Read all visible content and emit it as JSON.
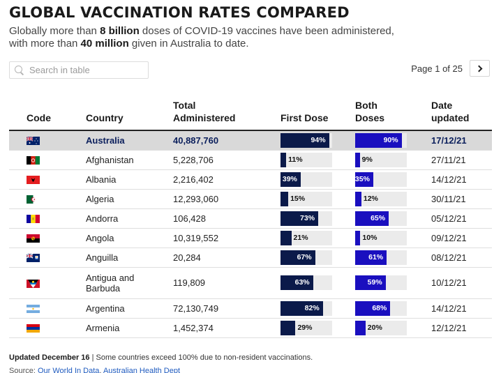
{
  "header": {
    "title": "GLOBAL VACCINATION RATES COMPARED",
    "subtitle_pre": "Globally more than ",
    "subtitle_bold1": "8 billion",
    "subtitle_mid": " doses of COVID-19 vaccines have been administered,",
    "subtitle_pre2": "with more than ",
    "subtitle_bold2": "40 million",
    "subtitle_post": " given in Australia to date."
  },
  "search": {
    "placeholder": "Search in table",
    "value": ""
  },
  "pager": {
    "label": "Page 1 of 25",
    "current": 1,
    "total": 25
  },
  "table": {
    "columns": {
      "code": "Code",
      "country": "Country",
      "total_1": "Total",
      "total_2": "Administered",
      "first": "First Dose",
      "both_1": "Both",
      "both_2": "Doses",
      "date_1": "Date",
      "date_2": "updated"
    },
    "rows": [
      {
        "flag": "australia-flag",
        "country": "Australia",
        "total": "40,887,760",
        "first": 94,
        "first_label": "94%",
        "both": 90,
        "both_label": "90%",
        "date": "17/12/21"
      },
      {
        "flag": "afghanistan-flag",
        "country": "Afghanistan",
        "total": "5,228,706",
        "first": 11,
        "first_label": "11%",
        "both": 9,
        "both_label": "9%",
        "date": "27/11/21"
      },
      {
        "flag": "albania-flag",
        "country": "Albania",
        "total": "2,216,402",
        "first": 39,
        "first_label": "39%",
        "both": 35,
        "both_label": "35%",
        "date": "14/12/21"
      },
      {
        "flag": "algeria-flag",
        "country": "Algeria",
        "total": "12,293,060",
        "first": 15,
        "first_label": "15%",
        "both": 12,
        "both_label": "12%",
        "date": "30/11/21"
      },
      {
        "flag": "andorra-flag",
        "country": "Andorra",
        "total": "106,428",
        "first": 73,
        "first_label": "73%",
        "both": 65,
        "both_label": "65%",
        "date": "05/12/21"
      },
      {
        "flag": "angola-flag",
        "country": "Angola",
        "total": "10,319,552",
        "first": 21,
        "first_label": "21%",
        "both": 10,
        "both_label": "10%",
        "date": "09/12/21"
      },
      {
        "flag": "anguilla-flag",
        "country": "Anguilla",
        "total": "20,284",
        "first": 67,
        "first_label": "67%",
        "both": 61,
        "both_label": "61%",
        "date": "08/12/21"
      },
      {
        "flag": "antigua-and-barbuda-flag",
        "country_1": "Antigua and",
        "country_2": "Barbuda",
        "total": "119,809",
        "first": 63,
        "first_label": "63%",
        "both": 59,
        "both_label": "59%",
        "date": "10/12/21"
      },
      {
        "flag": "argentina-flag",
        "country": "Argentina",
        "total": "72,130,749",
        "first": 82,
        "first_label": "82%",
        "both": 68,
        "both_label": "68%",
        "date": "14/12/21"
      },
      {
        "flag": "armenia-flag",
        "country": "Armenia",
        "total": "1,452,374",
        "first": 29,
        "first_label": "29%",
        "both": 20,
        "both_label": "20%",
        "date": "12/12/21"
      }
    ]
  },
  "footer": {
    "updated": "Updated December 16",
    "note": " | Some countries exceed 100% due to non-resident vaccinations.",
    "source_label": "Source: ",
    "source_link_1": "Our World In Data",
    "source_sep": ", ",
    "source_link_2": "Australian Health Dept"
  },
  "colors": {
    "first_dose_bar": "#0b1a4a",
    "both_doses_bar": "#1a0fbf",
    "bar_track": "#ebebeb",
    "highlight_row": "#d9d9d9"
  }
}
